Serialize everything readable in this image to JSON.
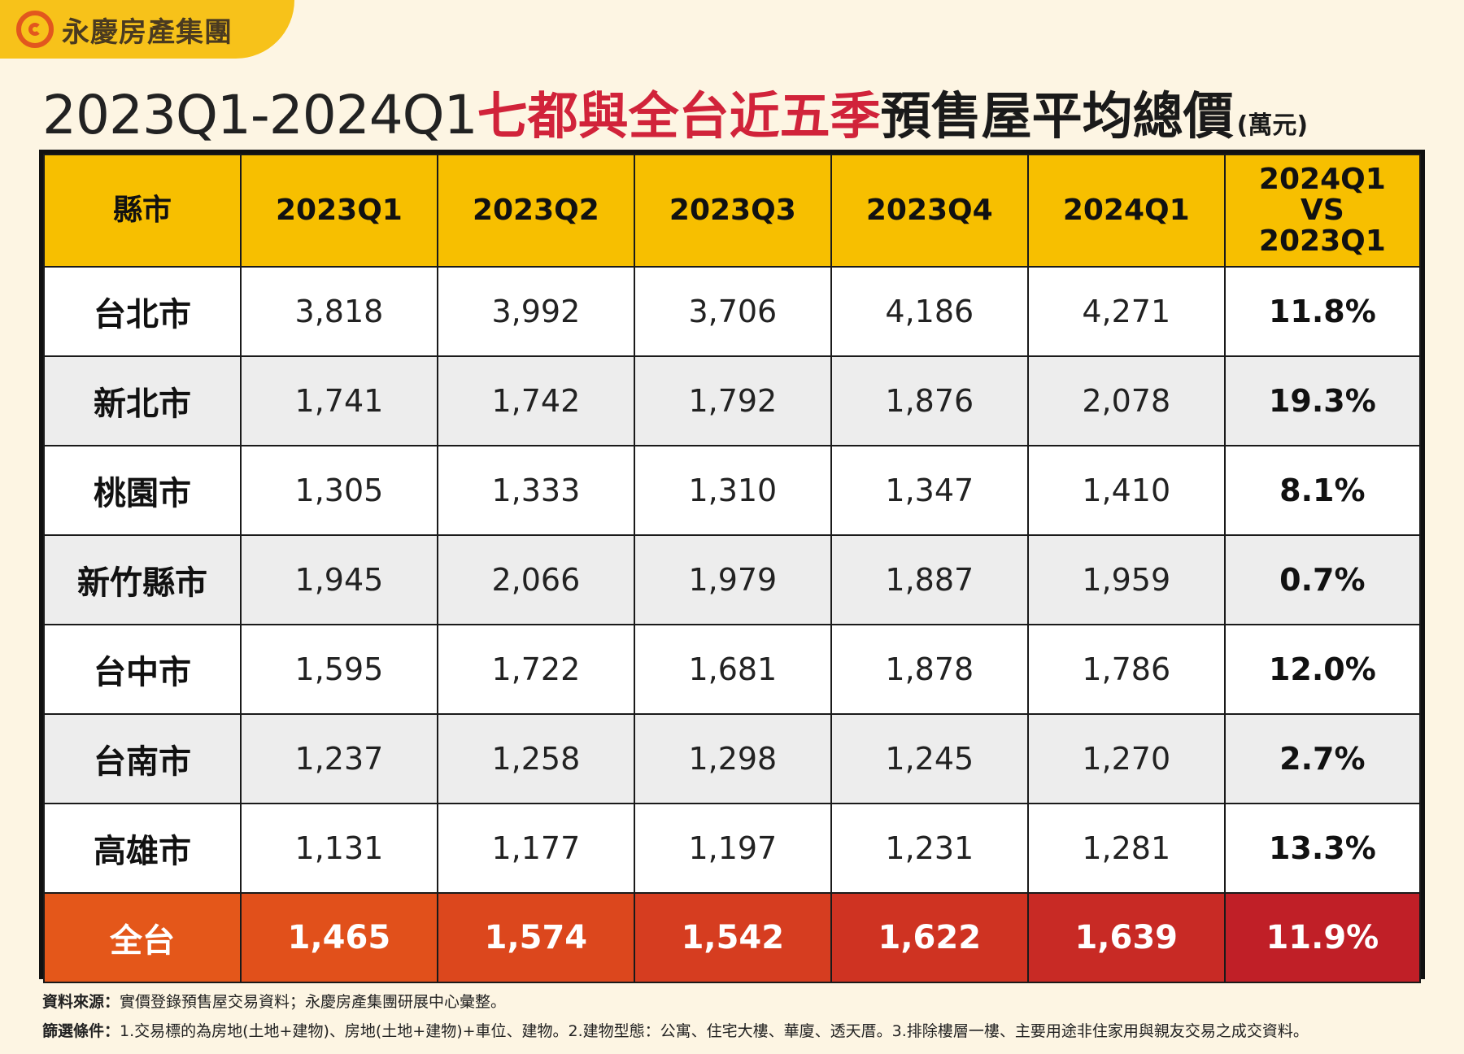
{
  "brand": {
    "name": "永慶房產集團"
  },
  "title": {
    "range": "2023Q1-2024Q1",
    "highlight": "七都與全台近五季",
    "rest": "預售屋平均總價",
    "unit": "(萬元)"
  },
  "colors": {
    "header": "#f7bf00",
    "accent_red": "#d1233a",
    "total_start": "#e4571a",
    "total_end": "#c01f27"
  },
  "table": {
    "headers": [
      "縣市",
      "2023Q1",
      "2023Q2",
      "2023Q3",
      "2023Q4",
      "2024Q1"
    ],
    "compare_header": [
      "2024Q1",
      "VS",
      "2023Q1"
    ],
    "rows": [
      {
        "city": "台北市",
        "values": [
          "3,818",
          "3,992",
          "3,706",
          "4,186",
          "4,271"
        ],
        "change": "11.8%"
      },
      {
        "city": "新北市",
        "values": [
          "1,741",
          "1,742",
          "1,792",
          "1,876",
          "2,078"
        ],
        "change": "19.3%"
      },
      {
        "city": "桃園市",
        "values": [
          "1,305",
          "1,333",
          "1,310",
          "1,347",
          "1,410"
        ],
        "change": "8.1%"
      },
      {
        "city": "新竹縣市",
        "values": [
          "1,945",
          "2,066",
          "1,979",
          "1,887",
          "1,959"
        ],
        "change": "0.7%"
      },
      {
        "city": "台中市",
        "values": [
          "1,595",
          "1,722",
          "1,681",
          "1,878",
          "1,786"
        ],
        "change": "12.0%"
      },
      {
        "city": "台南市",
        "values": [
          "1,237",
          "1,258",
          "1,298",
          "1,245",
          "1,270"
        ],
        "change": "2.7%"
      },
      {
        "city": "高雄市",
        "values": [
          "1,131",
          "1,177",
          "1,197",
          "1,231",
          "1,281"
        ],
        "change": "13.3%"
      }
    ],
    "total": {
      "city": "全台",
      "values": [
        "1,465",
        "1,574",
        "1,542",
        "1,622",
        "1,639"
      ],
      "change": "11.9%"
    }
  },
  "notes": {
    "source_label": "資料來源：",
    "source_text": "實價登錄預售屋交易資料；永慶房產集團研展中心彙整。",
    "filter_label": "篩選條件：",
    "filter_text": "1.交易標的為房地(土地+建物)、房地(土地+建物)+車位、建物。2.建物型態：公寓、住宅大樓、華廈、透天厝。3.排除樓層一樓、主要用途非住家用與親友交易之成交資料。"
  },
  "chart_data": {
    "type": "table",
    "title": "2023Q1-2024Q1七都與全台近五季預售屋平均總價(萬元)",
    "columns": [
      "縣市",
      "2023Q1",
      "2023Q2",
      "2023Q3",
      "2023Q4",
      "2024Q1",
      "2024Q1 VS 2023Q1"
    ],
    "categories": [
      "2023Q1",
      "2023Q2",
      "2023Q3",
      "2023Q4",
      "2024Q1"
    ],
    "series": [
      {
        "name": "台北市",
        "values": [
          3818,
          3992,
          3706,
          4186,
          4271
        ],
        "change_pct": 11.8
      },
      {
        "name": "新北市",
        "values": [
          1741,
          1742,
          1792,
          1876,
          2078
        ],
        "change_pct": 19.3
      },
      {
        "name": "桃園市",
        "values": [
          1305,
          1333,
          1310,
          1347,
          1410
        ],
        "change_pct": 8.1
      },
      {
        "name": "新竹縣市",
        "values": [
          1945,
          2066,
          1979,
          1887,
          1959
        ],
        "change_pct": 0.7
      },
      {
        "name": "台中市",
        "values": [
          1595,
          1722,
          1681,
          1878,
          1786
        ],
        "change_pct": 12.0
      },
      {
        "name": "台南市",
        "values": [
          1237,
          1258,
          1298,
          1245,
          1270
        ],
        "change_pct": 2.7
      },
      {
        "name": "高雄市",
        "values": [
          1131,
          1177,
          1197,
          1231,
          1281
        ],
        "change_pct": 13.3
      },
      {
        "name": "全台",
        "values": [
          1465,
          1574,
          1542,
          1622,
          1639
        ],
        "change_pct": 11.9
      }
    ]
  }
}
